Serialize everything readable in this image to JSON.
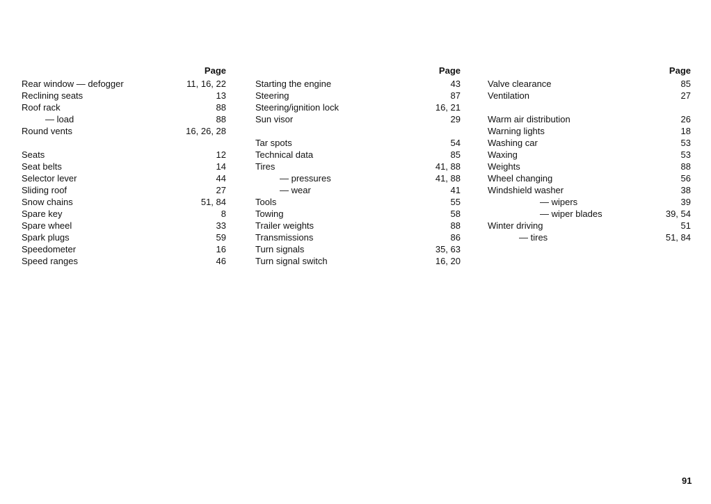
{
  "header_label": "Page",
  "page_number": "91",
  "columns": [
    [
      {
        "term": "Rear window — defogger",
        "pages": "11, 16, 22"
      },
      {
        "term": "Reclining seats",
        "pages": "13"
      },
      {
        "term": "Roof rack",
        "pages": "88"
      },
      {
        "term": "— load",
        "pages": "88",
        "level": 1
      },
      {
        "term": "Round vents",
        "pages": "16, 26, 28"
      },
      {
        "term": "",
        "pages": ""
      },
      {
        "term": "Seats",
        "pages": "12"
      },
      {
        "term": "Seat belts",
        "pages": "14"
      },
      {
        "term": "Selector lever",
        "pages": "44"
      },
      {
        "term": "Sliding roof",
        "pages": "27"
      },
      {
        "term": "Snow chains",
        "pages": "51, 84"
      },
      {
        "term": "Spare key",
        "pages": "8"
      },
      {
        "term": "Spare wheel",
        "pages": "33"
      },
      {
        "term": "Spark plugs",
        "pages": "59"
      },
      {
        "term": "Speedometer",
        "pages": "16"
      },
      {
        "term": "Speed ranges",
        "pages": "46"
      }
    ],
    [
      {
        "term": "Starting the engine",
        "pages": "43"
      },
      {
        "term": "Steering",
        "pages": "87"
      },
      {
        "term": "Steering/ignition lock",
        "pages": "16, 21"
      },
      {
        "term": "Sun visor",
        "pages": "29"
      },
      {
        "term": "",
        "pages": ""
      },
      {
        "term": "Tar spots",
        "pages": "54"
      },
      {
        "term": "Technical data",
        "pages": "85"
      },
      {
        "term": "Tires",
        "pages": "41, 88"
      },
      {
        "term": "— pressures",
        "pages": "41, 88",
        "level": 1
      },
      {
        "term": "— wear",
        "pages": "41",
        "level": 1
      },
      {
        "term": "Tools",
        "pages": "55"
      },
      {
        "term": "Towing",
        "pages": "58"
      },
      {
        "term": "Trailer weights",
        "pages": "88"
      },
      {
        "term": "Transmissions",
        "pages": "86"
      },
      {
        "term": "Turn signals",
        "pages": "35, 63"
      },
      {
        "term": "Turn signal switch",
        "pages": "16, 20"
      }
    ],
    [
      {
        "term": "Valve clearance",
        "pages": "85"
      },
      {
        "term": "Ventilation",
        "pages": "27"
      },
      {
        "term": "",
        "pages": ""
      },
      {
        "term": "Warm air distribution",
        "pages": "26"
      },
      {
        "term": "Warning lights",
        "pages": "18"
      },
      {
        "term": "Washing car",
        "pages": "53"
      },
      {
        "term": "Waxing",
        "pages": "53"
      },
      {
        "term": "Weights",
        "pages": "88"
      },
      {
        "term": "Wheel changing",
        "pages": "56"
      },
      {
        "term": "Windshield washer",
        "pages": "38"
      },
      {
        "term": "— wipers",
        "pages": "39",
        "level": 2
      },
      {
        "term": "— wiper blades",
        "pages": "39, 54",
        "level": 2
      },
      {
        "term": "Winter driving",
        "pages": "51"
      },
      {
        "term": "— tires",
        "pages": "51, 84",
        "level": 1
      }
    ]
  ]
}
